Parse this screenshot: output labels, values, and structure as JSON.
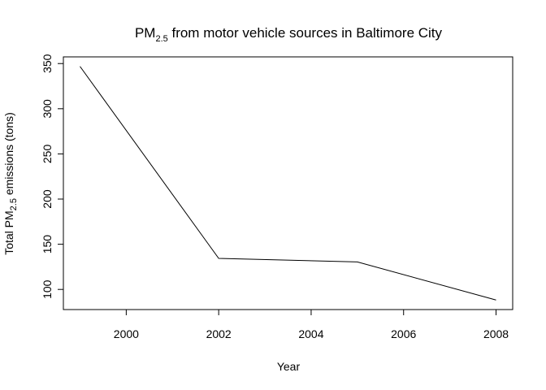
{
  "chart_data": {
    "type": "line",
    "title": {
      "main": "PM",
      "subscript": "2.5",
      "rest": " from motor vehicle sources in Baltimore City"
    },
    "xlabel": "Year",
    "ylabel": {
      "main": "Total PM",
      "subscript": "2.5",
      "rest": " emissions (tons)"
    },
    "x": [
      1999,
      2002,
      2005,
      2008
    ],
    "series": [
      {
        "values": [
          346.82,
          134.31,
          130.43,
          88.28
        ]
      }
    ],
    "xlim": [
      1998.64,
      2008.36
    ],
    "ylim": [
      77.7,
      357.4
    ],
    "xticks": [
      2000,
      2002,
      2004,
      2006,
      2008
    ],
    "yticks": [
      100,
      150,
      200,
      250,
      300,
      350
    ],
    "grid": false,
    "legend": "none",
    "line_color": "#000000"
  }
}
